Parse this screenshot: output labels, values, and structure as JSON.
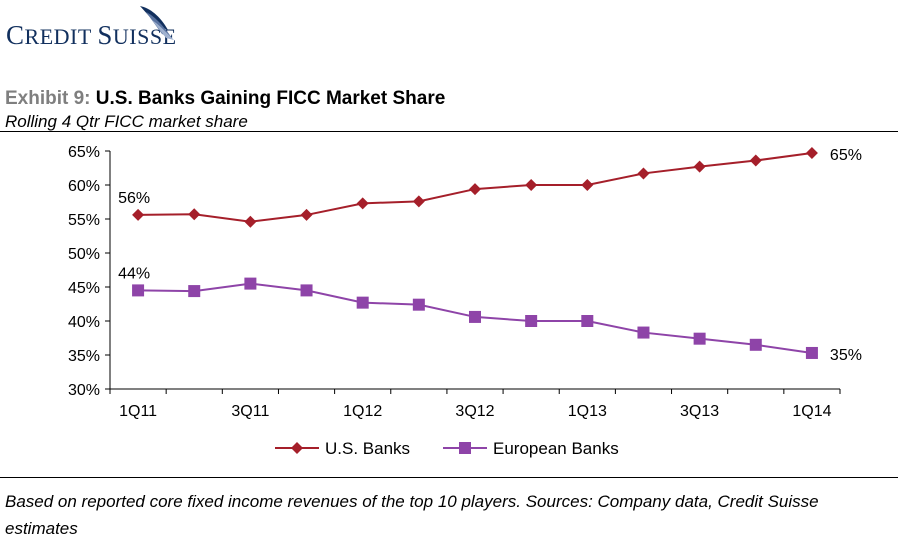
{
  "brand": {
    "name": "Credit Suisse"
  },
  "exhibit": {
    "label": "Exhibit 9:",
    "title": "U.S. Banks Gaining FICC Market Share"
  },
  "colors": {
    "us": "#a51f2a",
    "eu": "#8e44a8",
    "logo": "#12305e",
    "exhibit_label": "#7f7f7f"
  },
  "chart_data": {
    "type": "line",
    "title": "Rolling 4 Qtr FICC market share",
    "xlabel": "",
    "ylabel": "",
    "categories": [
      "1Q11",
      "2Q11",
      "3Q11",
      "4Q11",
      "1Q12",
      "2Q12",
      "3Q12",
      "4Q12",
      "1Q13",
      "2Q13",
      "3Q13",
      "4Q13",
      "1Q14"
    ],
    "tick_labels": [
      "1Q11",
      "",
      "3Q11",
      "",
      "1Q12",
      "",
      "3Q12",
      "",
      "1Q13",
      "",
      "3Q13",
      "",
      "1Q14"
    ],
    "ylim": [
      30,
      65
    ],
    "yticks": [
      "30%",
      "35%",
      "40%",
      "45%",
      "50%",
      "55%",
      "60%",
      "65%"
    ],
    "grid": false,
    "legend": "bottom-center",
    "series": [
      {
        "name": "U.S. Banks",
        "marker": "diamond",
        "values": [
          55.6,
          55.7,
          54.6,
          55.6,
          57.3,
          57.6,
          59.4,
          60.0,
          60.0,
          61.7,
          62.7,
          63.6,
          64.7
        ],
        "start_label": "56%",
        "end_label": "65%"
      },
      {
        "name": "European Banks",
        "marker": "square",
        "values": [
          44.5,
          44.4,
          45.5,
          44.5,
          42.7,
          42.4,
          40.6,
          40.0,
          40.0,
          38.3,
          37.4,
          36.5,
          35.3
        ],
        "start_label": "44%",
        "end_label": "35%"
      }
    ]
  },
  "footnote": "Based on reported core fixed income revenues of the top 10 players. Sources: Company data, Credit Suisse estimates"
}
